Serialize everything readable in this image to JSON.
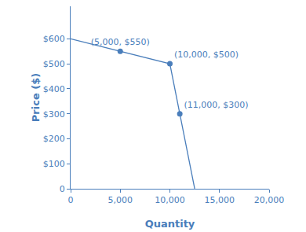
{
  "chart_data": {
    "type": "line",
    "x_label": "Quantity",
    "y_label": "Price ($)",
    "xlim": [
      0,
      20000
    ],
    "ylim": [
      0,
      730
    ],
    "xticks": [
      0,
      {
        "value": 5000,
        "label": "5,000"
      },
      {
        "value": 10000,
        "label": "10,000"
      },
      {
        "value": 15000,
        "label": "15,000"
      },
      {
        "value": 20000,
        "label": "20,000"
      }
    ],
    "yticks": [
      0,
      {
        "value": 100,
        "label": "$100"
      },
      {
        "value": 200,
        "label": "$200"
      },
      {
        "value": 300,
        "label": "$300"
      },
      {
        "value": 400,
        "label": "$400"
      },
      {
        "value": 500,
        "label": "$500"
      },
      {
        "value": 600,
        "label": "$600"
      }
    ],
    "grid": false,
    "data_labels": true,
    "series": [
      {
        "type": "line",
        "color": "#4a7ebb",
        "x": [
          0,
          5000,
          10000,
          11000,
          12500
        ],
        "values": [
          600,
          550,
          500,
          300,
          0
        ]
      },
      {
        "type": "scatter",
        "marker": "circle",
        "color": "#4a7ebb",
        "x": [
          5000,
          10000,
          11000
        ],
        "values": [
          550,
          500,
          300
        ],
        "value_labels": [
          "(5,000, $550)",
          "(10,000, $500)",
          "(11,000, $300)"
        ]
      }
    ]
  }
}
